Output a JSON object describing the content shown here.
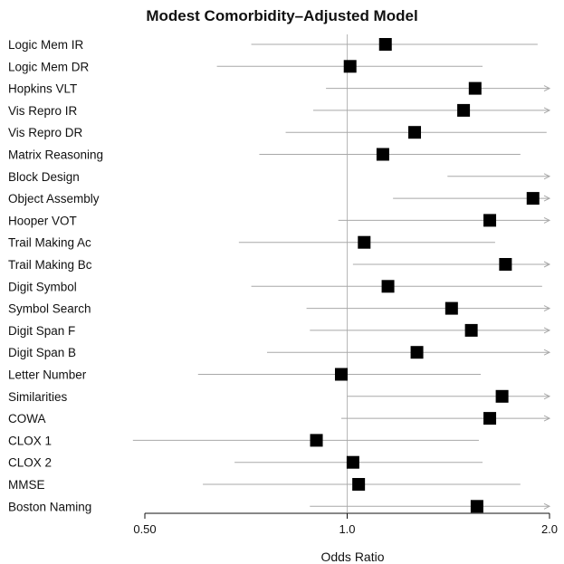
{
  "chart_data": {
    "type": "forest",
    "title": "Modest Comorbidity–Adjusted Model",
    "xlabel": "Odds Ratio",
    "xscale": "log",
    "xlim": [
      0.5,
      2.0
    ],
    "xticks": [
      {
        "value": 0.5,
        "label": "0.50"
      },
      {
        "value": 1.0,
        "label": "1.0"
      },
      {
        "value": 2.0,
        "label": "2.0"
      }
    ],
    "reference_line": 1.0,
    "rows": [
      {
        "label": "Logic Mem IR",
        "or": 1.14,
        "lo": 0.72,
        "hi": 1.92,
        "arrow": false
      },
      {
        "label": "Logic Mem DR",
        "or": 1.01,
        "lo": 0.64,
        "hi": 1.59,
        "arrow": false
      },
      {
        "label": "Hopkins VLT",
        "or": 1.55,
        "lo": 0.93,
        "hi": 2.0,
        "arrow": true
      },
      {
        "label": "Vis Repro IR",
        "or": 1.49,
        "lo": 0.89,
        "hi": 2.0,
        "arrow": true
      },
      {
        "label": "Vis Repro DR",
        "or": 1.26,
        "lo": 0.81,
        "hi": 1.98,
        "arrow": false
      },
      {
        "label": "Matrix Reasoning",
        "or": 1.13,
        "lo": 0.74,
        "hi": 1.81,
        "arrow": false
      },
      {
        "label": "Block Design",
        "or": null,
        "lo": 1.41,
        "hi": 2.0,
        "arrow": true
      },
      {
        "label": "Object Assembly",
        "or": 1.89,
        "lo": 1.17,
        "hi": 2.0,
        "arrow": true
      },
      {
        "label": "Hooper VOT",
        "or": 1.63,
        "lo": 0.97,
        "hi": 2.0,
        "arrow": true
      },
      {
        "label": "Trail Making Ac",
        "or": 1.06,
        "lo": 0.69,
        "hi": 1.66,
        "arrow": false
      },
      {
        "label": "Trail Making Bc",
        "or": 1.72,
        "lo": 1.02,
        "hi": 2.0,
        "arrow": true
      },
      {
        "label": "Digit Symbol",
        "or": 1.15,
        "lo": 0.72,
        "hi": 1.95,
        "arrow": false
      },
      {
        "label": "Symbol Search",
        "or": 1.43,
        "lo": 0.87,
        "hi": 2.0,
        "arrow": true
      },
      {
        "label": "Digit Span F",
        "or": 1.53,
        "lo": 0.88,
        "hi": 2.0,
        "arrow": true
      },
      {
        "label": "Digit Span B",
        "or": 1.27,
        "lo": 0.76,
        "hi": 2.0,
        "arrow": true
      },
      {
        "label": "Letter Number",
        "or": 0.98,
        "lo": 0.6,
        "hi": 1.58,
        "arrow": false
      },
      {
        "label": "Similarities",
        "or": 1.7,
        "lo": 1.0,
        "hi": 2.0,
        "arrow": true
      },
      {
        "label": "COWA",
        "or": 1.63,
        "lo": 0.98,
        "hi": 2.0,
        "arrow": true
      },
      {
        "label": "CLOX 1",
        "or": 0.9,
        "lo": 0.48,
        "hi": 1.57,
        "arrow": false
      },
      {
        "label": "CLOX 2",
        "or": 1.02,
        "lo": 0.68,
        "hi": 1.59,
        "arrow": false
      },
      {
        "label": "MMSE",
        "or": 1.04,
        "lo": 0.61,
        "hi": 1.81,
        "arrow": false
      },
      {
        "label": "Boston Naming",
        "or": 1.56,
        "lo": 0.88,
        "hi": 2.0,
        "arrow": true
      }
    ]
  }
}
